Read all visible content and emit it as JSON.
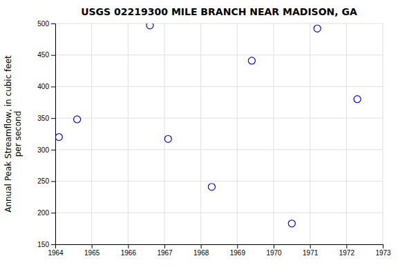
{
  "chart_data": {
    "type": "scatter",
    "title": "USGS 02219300 MILE BRANCH NEAR MADISON, GA",
    "ylabel": "Annual Peak Streamflow, in cubic feet\nper second",
    "x": [
      1964.1,
      1964.6,
      1966.6,
      1967.1,
      1968.3,
      1969.4,
      1970.5,
      1971.2,
      1972.3
    ],
    "values": [
      320,
      348,
      497,
      317,
      241,
      441,
      183,
      492,
      380
    ],
    "xlim": [
      1964,
      1973
    ],
    "ylim": [
      150,
      500
    ],
    "xticks": [
      1964,
      1965,
      1966,
      1967,
      1968,
      1969,
      1970,
      1971,
      1972,
      1973
    ],
    "yticks": [
      150,
      200,
      250,
      300,
      350,
      400,
      450,
      500
    ],
    "color": "blue",
    "marker": "circle",
    "grid": true
  }
}
